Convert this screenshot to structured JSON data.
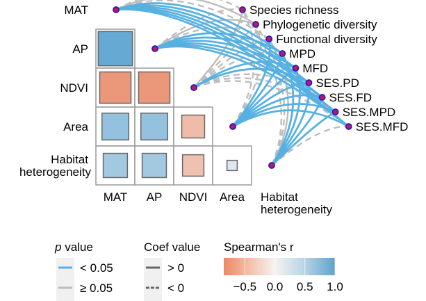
{
  "chart_data": {
    "type": "heatmap",
    "title": "",
    "matrix": {
      "variables": [
        "MAT",
        "AP",
        "NDVI",
        "Area",
        "Habitat heterogeneity"
      ],
      "row_labels": [
        "AP",
        "NDVI",
        "Area",
        "Habitat\nheterogeneity"
      ],
      "col_labels": [
        "MAT",
        "AP",
        "NDVI",
        "Area"
      ],
      "cells": [
        {
          "row": "AP",
          "col": "MAT",
          "r": 0.9
        },
        {
          "row": "NDVI",
          "col": "MAT",
          "r": -0.75
        },
        {
          "row": "NDVI",
          "col": "AP",
          "r": -0.75
        },
        {
          "row": "Area",
          "col": "MAT",
          "r": 0.55
        },
        {
          "row": "Area",
          "col": "AP",
          "r": 0.55
        },
        {
          "row": "Area",
          "col": "NDVI",
          "r": -0.4
        },
        {
          "row": "Habitat heterogeneity",
          "col": "MAT",
          "r": 0.45
        },
        {
          "row": "Habitat heterogeneity",
          "col": "AP",
          "r": 0.45
        },
        {
          "row": "Habitat heterogeneity",
          "col": "NDVI",
          "r": -0.35
        },
        {
          "row": "Habitat heterogeneity",
          "col": "Area",
          "r": 0.08
        }
      ]
    },
    "network": {
      "sources": [
        "MAT",
        "AP",
        "NDVI",
        "Area",
        "Habitat heterogeneity"
      ],
      "targets": [
        "Species richness",
        "Phylogenetic diversity",
        "Functional diversity",
        "MPD",
        "MFD",
        "SES.PD",
        "SES.FD",
        "SES.MPD",
        "SES.MFD"
      ],
      "source_label_habitat": [
        "Habitat",
        "heterogeneity"
      ],
      "links": [
        {
          "from": "MAT",
          "to": "Species richness",
          "p": "ge",
          "coef": "neg"
        },
        {
          "from": "MAT",
          "to": "Phylogenetic diversity",
          "p": "ge",
          "coef": "pos"
        },
        {
          "from": "MAT",
          "to": "Functional diversity",
          "p": "ge",
          "coef": "neg"
        },
        {
          "from": "MAT",
          "to": "MPD",
          "p": "lt",
          "coef": "pos"
        },
        {
          "from": "MAT",
          "to": "MFD",
          "p": "lt",
          "coef": "pos"
        },
        {
          "from": "MAT",
          "to": "SES.PD",
          "p": "lt",
          "coef": "pos"
        },
        {
          "from": "MAT",
          "to": "SES.FD",
          "p": "lt",
          "coef": "pos"
        },
        {
          "from": "MAT",
          "to": "SES.MPD",
          "p": "lt",
          "coef": "pos"
        },
        {
          "from": "MAT",
          "to": "SES.MFD",
          "p": "lt",
          "coef": "pos"
        },
        {
          "from": "AP",
          "to": "Species richness",
          "p": "ge",
          "coef": "neg"
        },
        {
          "from": "AP",
          "to": "Phylogenetic diversity",
          "p": "ge",
          "coef": "pos"
        },
        {
          "from": "AP",
          "to": "Functional diversity",
          "p": "ge",
          "coef": "neg"
        },
        {
          "from": "AP",
          "to": "MPD",
          "p": "lt",
          "coef": "pos"
        },
        {
          "from": "AP",
          "to": "MFD",
          "p": "lt",
          "coef": "pos"
        },
        {
          "from": "AP",
          "to": "SES.PD",
          "p": "lt",
          "coef": "pos"
        },
        {
          "from": "AP",
          "to": "SES.FD",
          "p": "lt",
          "coef": "pos"
        },
        {
          "from": "AP",
          "to": "SES.MPD",
          "p": "lt",
          "coef": "pos"
        },
        {
          "from": "AP",
          "to": "SES.MFD",
          "p": "lt",
          "coef": "pos"
        },
        {
          "from": "NDVI",
          "to": "Species richness",
          "p": "ge",
          "coef": "pos"
        },
        {
          "from": "NDVI",
          "to": "Phylogenetic diversity",
          "p": "ge",
          "coef": "neg"
        },
        {
          "from": "NDVI",
          "to": "Functional diversity",
          "p": "ge",
          "coef": "neg"
        },
        {
          "from": "NDVI",
          "to": "MPD",
          "p": "ge",
          "coef": "neg"
        },
        {
          "from": "NDVI",
          "to": "MFD",
          "p": "lt",
          "coef": "pos"
        },
        {
          "from": "NDVI",
          "to": "SES.PD",
          "p": "lt",
          "coef": "pos"
        },
        {
          "from": "NDVI",
          "to": "SES.FD",
          "p": "ge",
          "coef": "neg"
        },
        {
          "from": "NDVI",
          "to": "SES.MPD",
          "p": "ge",
          "coef": "neg"
        },
        {
          "from": "NDVI",
          "to": "SES.MFD",
          "p": "ge",
          "coef": "neg"
        },
        {
          "from": "Area",
          "to": "Species richness",
          "p": "ge",
          "coef": "neg"
        },
        {
          "from": "Area",
          "to": "Phylogenetic diversity",
          "p": "ge",
          "coef": "neg"
        },
        {
          "from": "Area",
          "to": "Functional diversity",
          "p": "lt",
          "coef": "pos"
        },
        {
          "from": "Area",
          "to": "MPD",
          "p": "lt",
          "coef": "pos"
        },
        {
          "from": "Area",
          "to": "MFD",
          "p": "lt",
          "coef": "pos"
        },
        {
          "from": "Area",
          "to": "SES.PD",
          "p": "lt",
          "coef": "pos"
        },
        {
          "from": "Area",
          "to": "SES.FD",
          "p": "lt",
          "coef": "pos"
        },
        {
          "from": "Area",
          "to": "SES.MPD",
          "p": "lt",
          "coef": "pos"
        },
        {
          "from": "Area",
          "to": "SES.MFD",
          "p": "lt",
          "coef": "pos"
        },
        {
          "from": "Habitat heterogeneity",
          "to": "Species richness",
          "p": "ge",
          "coef": "neg"
        },
        {
          "from": "Habitat heterogeneity",
          "to": "Phylogenetic diversity",
          "p": "ge",
          "coef": "neg"
        },
        {
          "from": "Habitat heterogeneity",
          "to": "Functional diversity",
          "p": "ge",
          "coef": "pos"
        },
        {
          "from": "Habitat heterogeneity",
          "to": "MPD",
          "p": "lt",
          "coef": "pos"
        },
        {
          "from": "Habitat heterogeneity",
          "to": "MFD",
          "p": "lt",
          "coef": "pos"
        },
        {
          "from": "Habitat heterogeneity",
          "to": "SES.PD",
          "p": "lt",
          "coef": "pos"
        },
        {
          "from": "Habitat heterogeneity",
          "to": "SES.FD",
          "p": "lt",
          "coef": "pos"
        },
        {
          "from": "Habitat heterogeneity",
          "to": "SES.MPD",
          "p": "lt",
          "coef": "pos"
        },
        {
          "from": "Habitat heterogeneity",
          "to": "SES.MFD",
          "p": "ge",
          "coef": "neg"
        }
      ]
    },
    "legend": {
      "p_title_italic": "p",
      "p_title_rest": " value",
      "p_items": [
        {
          "label": "< 0.05",
          "color": "#56b1e3"
        },
        {
          "label": "≥ 0.05",
          "color": "#bdbdbd"
        }
      ],
      "coef_title": "Coef value",
      "coef_items": [
        {
          "label": "> 0",
          "style": "solid"
        },
        {
          "label": "< 0",
          "style": "dashed"
        }
      ],
      "colorbar_title": "Spearman's r",
      "colorbar_ticks": [
        "−0.5",
        "0.0",
        "0.5",
        "1.0"
      ],
      "colorbar_range": [
        -0.85,
        1.0
      ],
      "colors": {
        "negative": "#e8805a",
        "zero": "#f5f5f5",
        "positive": "#5aa3cf"
      }
    }
  }
}
